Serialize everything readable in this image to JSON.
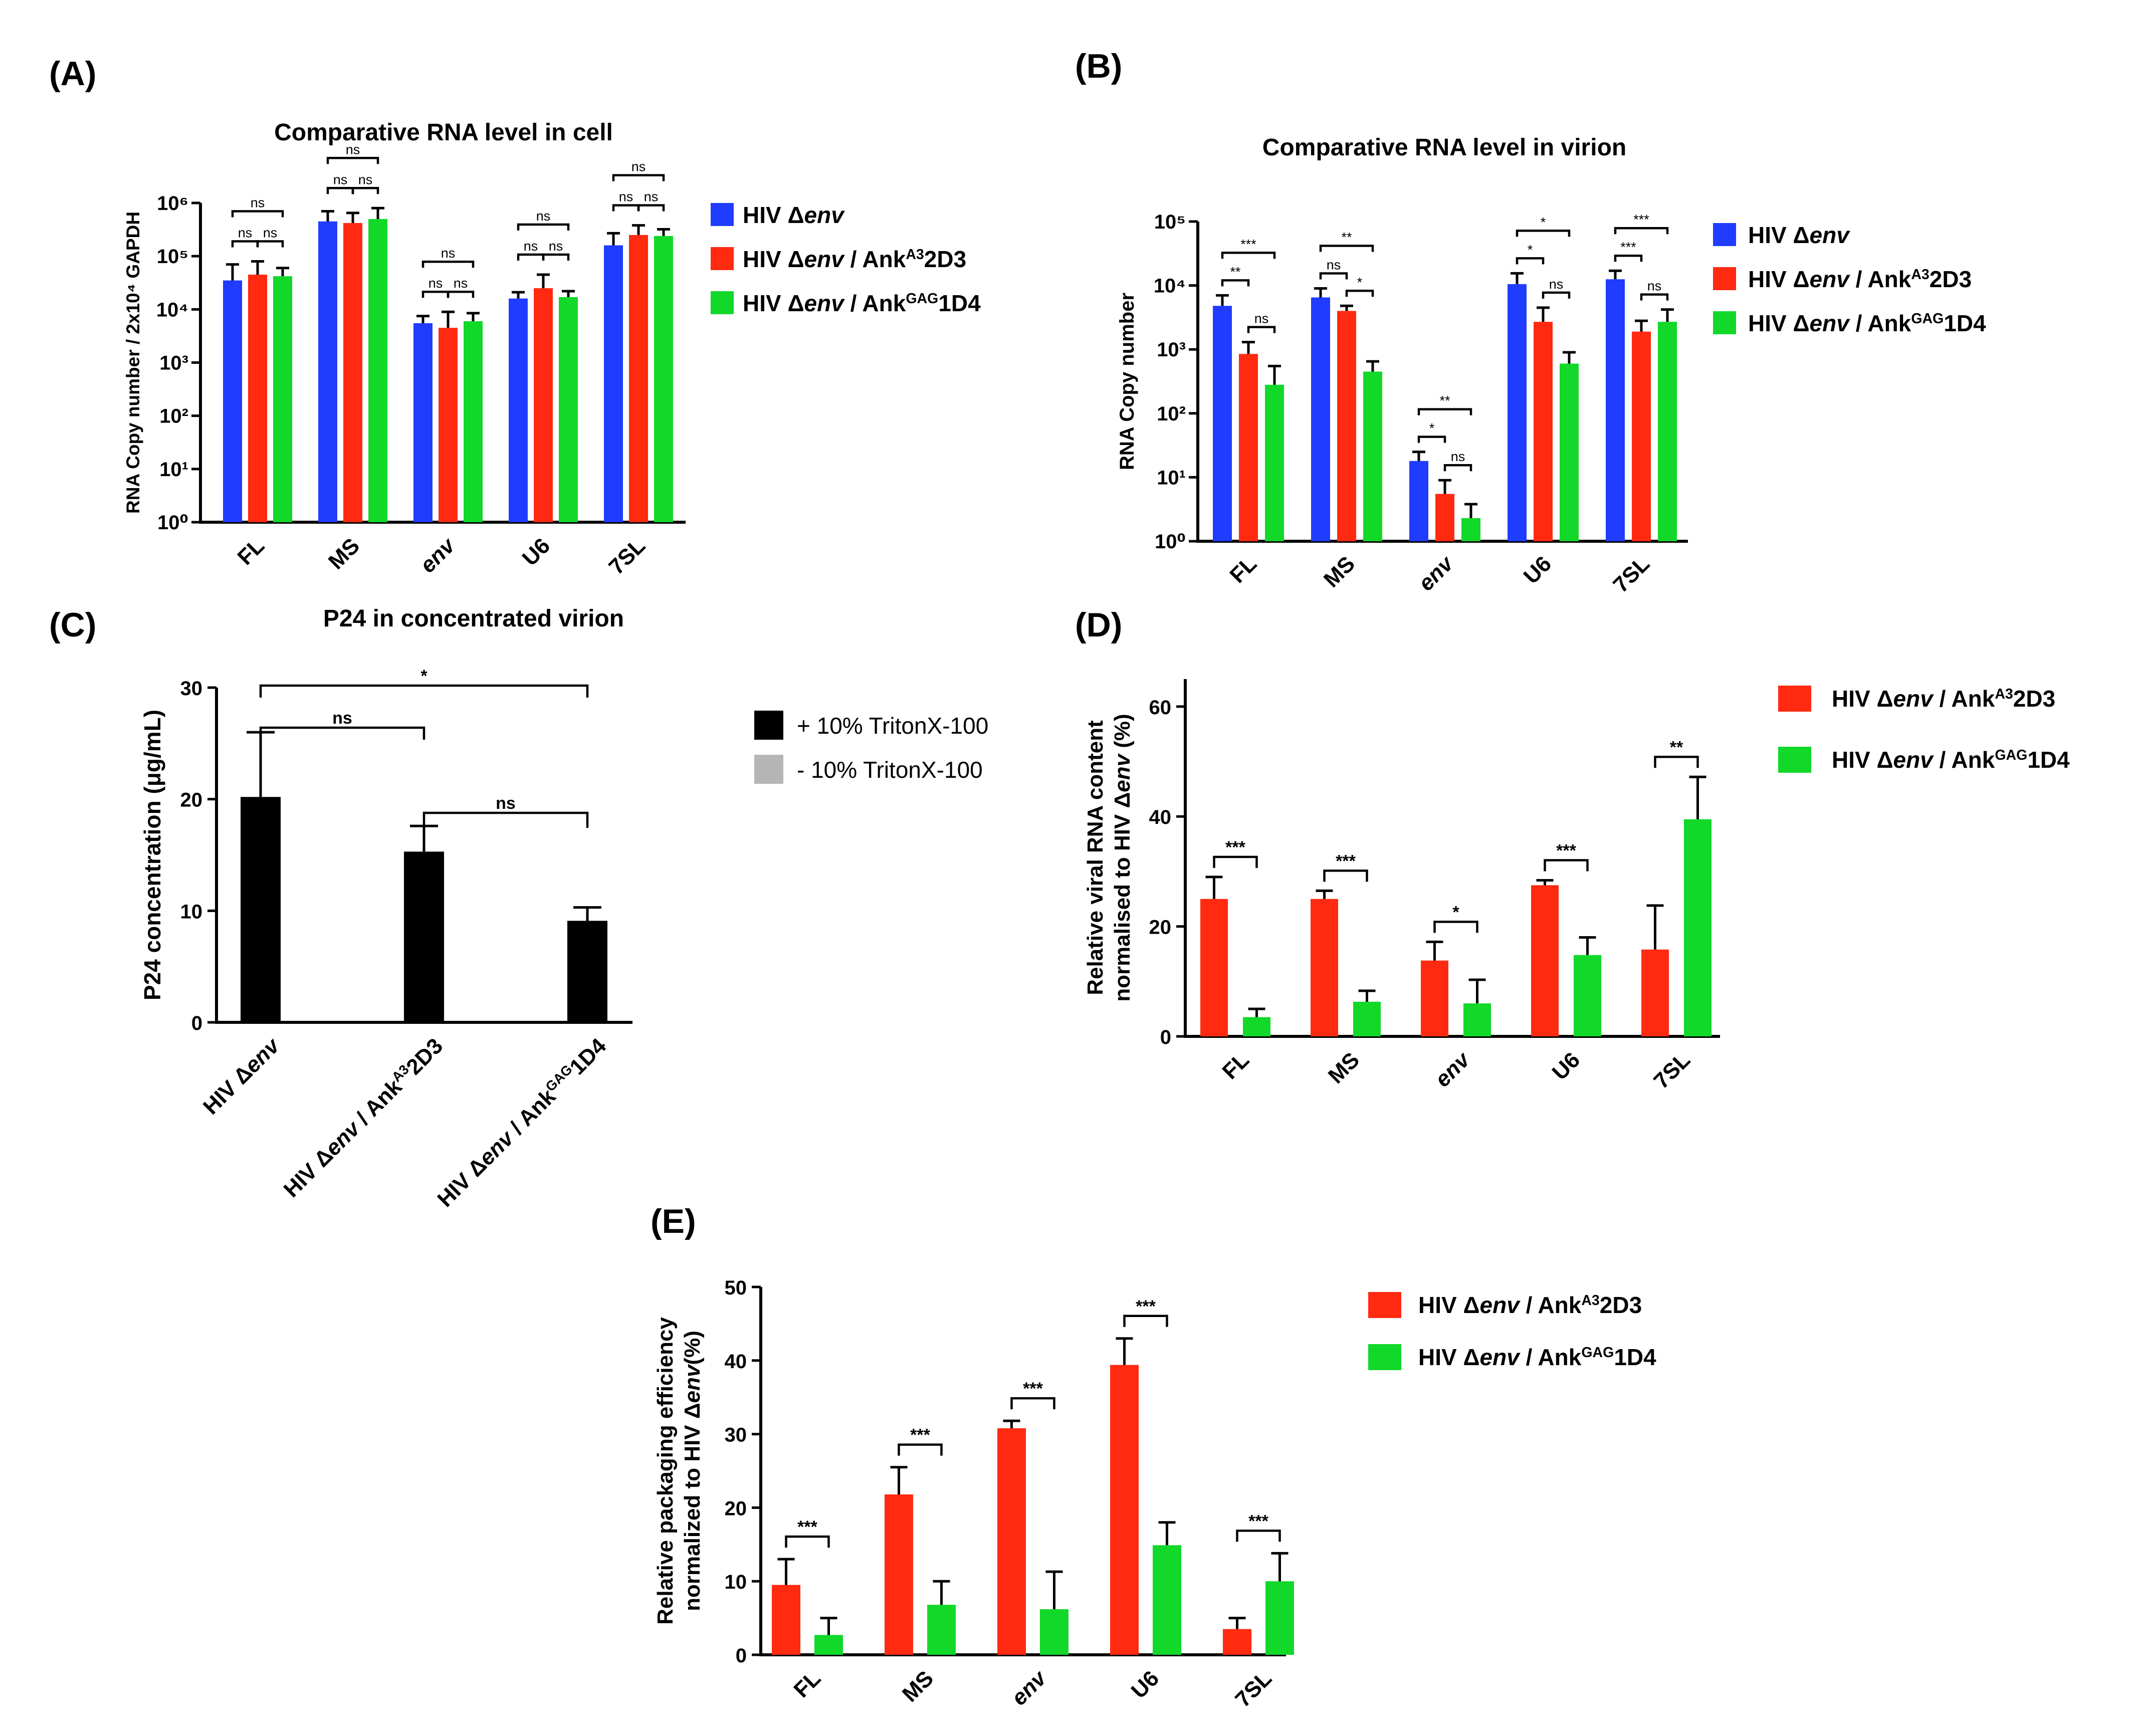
{
  "colors": {
    "blue": "#1f3cff",
    "red": "#ff2a10",
    "green": "#12d82a",
    "black": "#000000",
    "gray": "#b5b5b5"
  },
  "panels": {
    "A": {
      "label": "(A)",
      "chart_data": {
        "type": "bar",
        "title": "Comparative RNA level in cell",
        "ylabel": "RNA Copy number / 2x10⁴ GAPDH",
        "yscale": "log",
        "ylim": [
          1,
          1000000
        ],
        "ytick_labels": [
          "10⁰",
          "10¹",
          "10²",
          "10³",
          "10⁴",
          "10⁵",
          "10⁶"
        ],
        "categories": [
          "FL",
          "MS",
          "env",
          "U6",
          "7SL"
        ],
        "series": [
          {
            "name": "HIV Δenv",
            "values": [
              35000,
              450000,
              5500,
              16000,
              160000
            ],
            "errors": [
              70000,
              700000,
              7500,
              21000,
              270000
            ]
          },
          {
            "name": "HIV Δenv / Ankᴬ³2D3",
            "values": [
              45000,
              420000,
              4500,
              25000,
              250000
            ],
            "errors": [
              80000,
              650000,
              9000,
              45000,
              380000
            ]
          },
          {
            "name": "HIV Δenv / Ankᴳᴬᴳ1D4",
            "values": [
              42000,
              500000,
              6000,
              17000,
              240000
            ],
            "errors": [
              60000,
              800000,
              8500,
              22000,
              320000
            ]
          }
        ],
        "significance": [
          "ns",
          "ns",
          "ns",
          "ns",
          "ns",
          "ns",
          "ns",
          "ns",
          "ns",
          "ns",
          "ns",
          "ns",
          "ns",
          "ns",
          "ns"
        ]
      },
      "legend": [
        {
          "main": "HIV Δ",
          "ital": "env",
          "rest": ""
        },
        {
          "main": "HIV Δ",
          "ital": "env",
          "rest": " / Ank",
          "sup": "A3",
          "tail": "2D3"
        },
        {
          "main": "HIV Δ",
          "ital": "env",
          "rest": " / Ank",
          "sup": "GAG",
          "tail": "1D4"
        }
      ]
    },
    "B": {
      "label": "(B)",
      "chart_data": {
        "type": "bar",
        "title": "Comparative RNA level in virion",
        "ylabel": "RNA Copy number",
        "yscale": "log",
        "ylim": [
          1,
          100000
        ],
        "ytick_labels": [
          "10⁰",
          "10¹",
          "10²",
          "10³",
          "10⁴",
          "10⁵"
        ],
        "categories": [
          "FL",
          "MS",
          "env",
          "U6",
          "7SL"
        ],
        "series": [
          {
            "name": "HIV Δenv",
            "values": [
              4800,
              6500,
              18,
              10500,
              12500
            ],
            "errors": [
              7000,
              9000,
              25,
              15500,
              17000
            ]
          },
          {
            "name": "HIV Δenv / Ankᴬ³2D3",
            "values": [
              850,
              4000,
              5.5,
              2700,
              1900
            ],
            "errors": [
              1300,
              4800,
              9,
              4500,
              2800
            ]
          },
          {
            "name": "HIV Δenv / Ankᴳᴬᴳ1D4",
            "values": [
              280,
              450,
              2.3,
              600,
              2700
            ],
            "errors": [
              550,
              650,
              3.8,
              900,
              4200
            ]
          }
        ],
        "significance": [
          "**",
          "***",
          "ns",
          "ns",
          "**",
          "*",
          "*",
          "**",
          "ns",
          "*",
          "*",
          "ns",
          "***",
          "***",
          "ns"
        ]
      },
      "legend": [
        {
          "main": "HIV Δ",
          "ital": "env",
          "rest": ""
        },
        {
          "main": "HIV Δ",
          "ital": "env",
          "rest": " / Ank",
          "sup": "A3",
          "tail": "2D3"
        },
        {
          "main": "HIV Δ",
          "ital": "env",
          "rest": " / Ank",
          "sup": "GAG",
          "tail": "1D4"
        }
      ]
    },
    "C": {
      "label": "(C)",
      "chart_data": {
        "type": "bar",
        "title": "P24 in concentrated virion",
        "ylabel": "P24 concentration (μg/mL)",
        "ylim": [
          0,
          30
        ],
        "yticks": [
          0,
          10,
          20,
          30
        ],
        "categories": [
          {
            "main": "HIV Δ",
            "ital": "env",
            "rest": ""
          },
          {
            "main": "HIV Δ",
            "ital": "env",
            "rest": " / Ank",
            "sup": "A3",
            "tail": "2D3"
          },
          {
            "main": "HIV Δ",
            "ital": "env",
            "rest": " / Ank",
            "sup": "GAG",
            "tail": "1D4"
          }
        ],
        "series": [
          {
            "name": "+ 10% TritonX-100",
            "values": [
              20.2,
              15.3,
              9.1
            ],
            "errors": [
              26.0,
              17.6,
              10.3
            ]
          },
          {
            "name": "- 10% TritonX-100",
            "values": [
              0,
              0,
              0
            ],
            "errors": [
              0,
              0,
              0
            ]
          }
        ],
        "significance": [
          "ns",
          "*",
          "ns"
        ]
      }
    },
    "D": {
      "label": "(D)",
      "chart_data": {
        "type": "bar",
        "ylabel": "Relative viral RNA content normalised to HIV Δenv (%)",
        "ylabel_lines": [
          "Relative viral RNA content",
          "normalised to HIV Δ",
          "env",
          " (%)"
        ],
        "ylim": [
          0,
          65
        ],
        "yticks": [
          0,
          20,
          40,
          60
        ],
        "categories": [
          "FL",
          "MS",
          "env",
          "U6",
          "7SL"
        ],
        "series": [
          {
            "name": "HIV Δenv / Ankᴬ³2D3",
            "values": [
              25.0,
              25.0,
              13.8,
              27.5,
              15.8
            ],
            "errors": [
              29.0,
              26.5,
              17.2,
              28.4,
              23.8
            ]
          },
          {
            "name": "HIV Δenv / Ankᴳᴬᴳ1D4",
            "values": [
              3.5,
              6.3,
              6.0,
              14.8,
              39.5
            ],
            "errors": [
              5.0,
              8.3,
              10.3,
              18.0,
              47.2
            ]
          }
        ],
        "significance": [
          "***",
          "***",
          "*",
          "***",
          "**"
        ]
      },
      "legend": [
        {
          "main": "HIV Δ",
          "ital": "env",
          "rest": " / Ank",
          "sup": "A3",
          "tail": "2D3"
        },
        {
          "main": "HIV Δ",
          "ital": "env",
          "rest": " / Ank",
          "sup": "GAG",
          "tail": "1D4"
        }
      ]
    },
    "E": {
      "label": "(E)",
      "chart_data": {
        "type": "bar",
        "ylabel": "Relative packaging efficiency normalized to HIV Δenv(%)",
        "ylabel_lines": [
          "Relative packaging efficiency",
          "normalized to HIV Δ",
          "env",
          "(%)"
        ],
        "ylim": [
          0,
          50
        ],
        "yticks": [
          0,
          10,
          20,
          30,
          40,
          50
        ],
        "categories": [
          "FL",
          "MS",
          "env",
          "U6",
          "7SL"
        ],
        "series": [
          {
            "name": "HIV Δenv / Ankᴬ³2D3",
            "values": [
              9.5,
              21.8,
              30.8,
              39.4,
              3.5
            ],
            "errors": [
              13.0,
              25.5,
              31.8,
              43.0,
              5.0
            ]
          },
          {
            "name": "HIV Δenv / Ankᴳᴬᴳ1D4",
            "values": [
              2.7,
              6.8,
              6.2,
              14.9,
              10.0
            ],
            "errors": [
              5.0,
              10.0,
              11.3,
              18.0,
              13.8
            ]
          }
        ],
        "significance": [
          "***",
          "***",
          "***",
          "***",
          "***"
        ]
      },
      "legend": [
        {
          "main": "HIV Δ",
          "ital": "env",
          "rest": " / Ank",
          "sup": "A3",
          "tail": "2D3"
        },
        {
          "main": "HIV Δ",
          "ital": "env",
          "rest": " / Ank",
          "sup": "GAG",
          "tail": "1D4"
        }
      ]
    }
  }
}
